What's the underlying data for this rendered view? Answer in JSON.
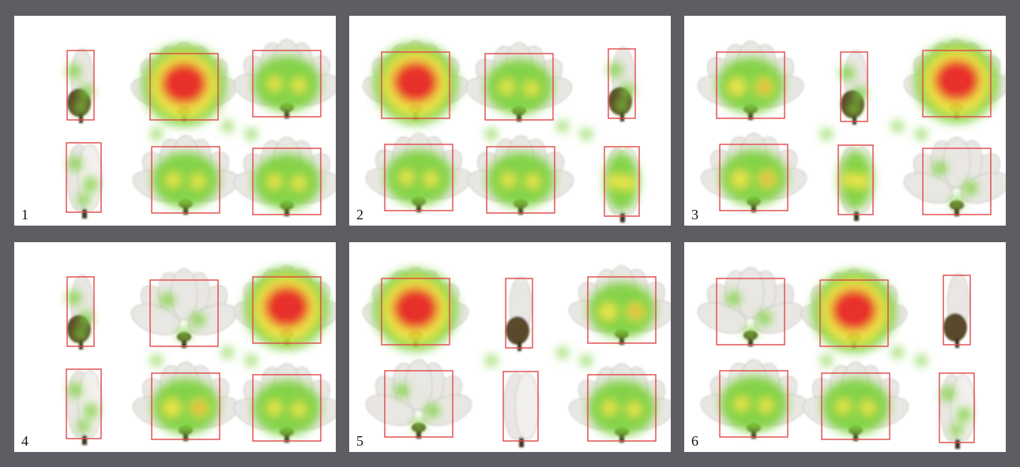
{
  "figure": {
    "colors": {
      "frame": "#5f5c63",
      "panel_bg": "#ffffff",
      "roi_box": "#e04848",
      "heat_low": "#7bd13a",
      "heat_mid": "#f0e63a",
      "heat_high": "#e8231e",
      "petal": "#e9e7e4",
      "bud": "#5a4a2a"
    },
    "panels": [
      {
        "label": "1",
        "items": [
          {
            "kind": "bud",
            "heat": "low"
          },
          {
            "kind": "open",
            "heat": "high"
          },
          {
            "kind": "open",
            "heat": "mid"
          },
          {
            "kind": "tall",
            "heat": "low"
          },
          {
            "kind": "open",
            "heat": "mid"
          },
          {
            "kind": "open",
            "heat": "mid"
          }
        ]
      },
      {
        "label": "2",
        "items": [
          {
            "kind": "open",
            "heat": "high"
          },
          {
            "kind": "open",
            "heat": "mid"
          },
          {
            "kind": "bud",
            "heat": "low"
          },
          {
            "kind": "open",
            "heat": "mid"
          },
          {
            "kind": "open",
            "heat": "mid"
          },
          {
            "kind": "tall",
            "heat": "mid"
          }
        ]
      },
      {
        "label": "3",
        "items": [
          {
            "kind": "open",
            "heat": "spot"
          },
          {
            "kind": "bud",
            "heat": "low"
          },
          {
            "kind": "open",
            "heat": "high"
          },
          {
            "kind": "open",
            "heat": "spot"
          },
          {
            "kind": "tall",
            "heat": "mid"
          },
          {
            "kind": "open",
            "heat": "low"
          }
        ]
      },
      {
        "label": "4",
        "items": [
          {
            "kind": "bud",
            "heat": "low"
          },
          {
            "kind": "open",
            "heat": "low"
          },
          {
            "kind": "open",
            "heat": "high"
          },
          {
            "kind": "tall",
            "heat": "low"
          },
          {
            "kind": "open",
            "heat": "spot"
          },
          {
            "kind": "open",
            "heat": "mid"
          }
        ]
      },
      {
        "label": "5",
        "items": [
          {
            "kind": "open",
            "heat": "high"
          },
          {
            "kind": "bud",
            "heat": "none"
          },
          {
            "kind": "open",
            "heat": "spot"
          },
          {
            "kind": "open",
            "heat": "low"
          },
          {
            "kind": "tall",
            "heat": "none"
          },
          {
            "kind": "open",
            "heat": "mid"
          }
        ]
      },
      {
        "label": "6",
        "items": [
          {
            "kind": "open",
            "heat": "low"
          },
          {
            "kind": "open",
            "heat": "high"
          },
          {
            "kind": "bud",
            "heat": "none"
          },
          {
            "kind": "open",
            "heat": "mid"
          },
          {
            "kind": "open",
            "heat": "mid"
          },
          {
            "kind": "tall",
            "heat": "low"
          }
        ]
      }
    ]
  }
}
